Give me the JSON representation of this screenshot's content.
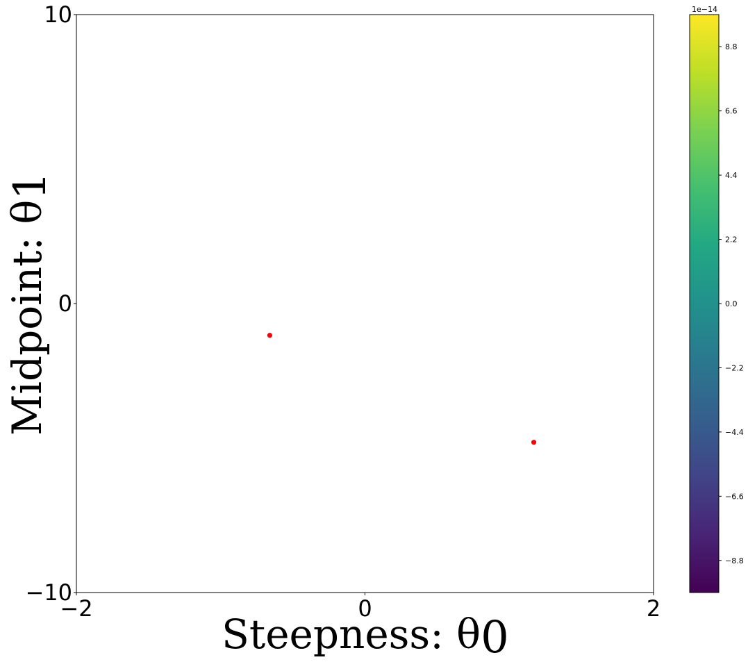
{
  "chart_data": {
    "type": "scatter",
    "xlabel": "Steepness: θ",
    "xlabel_sub": "0",
    "ylabel": "Midpoint: θ",
    "ylabel_sub": "1",
    "xlim": [
      -2,
      2
    ],
    "ylim": [
      -10,
      10
    ],
    "xticks": [
      -2,
      0,
      2
    ],
    "xtick_labels": [
      "−2",
      "0",
      "2"
    ],
    "yticks": [
      -10,
      0,
      10
    ],
    "ytick_labels": [
      "−10",
      "0",
      "10"
    ],
    "grid": false,
    "points": [
      {
        "x": -0.66,
        "y": -1.1
      },
      {
        "x": 1.17,
        "y": -4.8
      }
    ],
    "point_color": "#ff0000",
    "colorbar": {
      "colormap": "viridis",
      "range": [
        -9.9,
        9.9
      ],
      "scale_label": "1e−14",
      "ticks": [
        8.8,
        6.6,
        4.4,
        2.2,
        0.0,
        -2.2,
        -4.4,
        -6.6,
        -8.8
      ],
      "tick_labels": [
        "8.8",
        "6.6",
        "4.4",
        "2.2",
        "0.0",
        "−2.2",
        "−4.4",
        "−6.6",
        "−8.8"
      ]
    }
  }
}
